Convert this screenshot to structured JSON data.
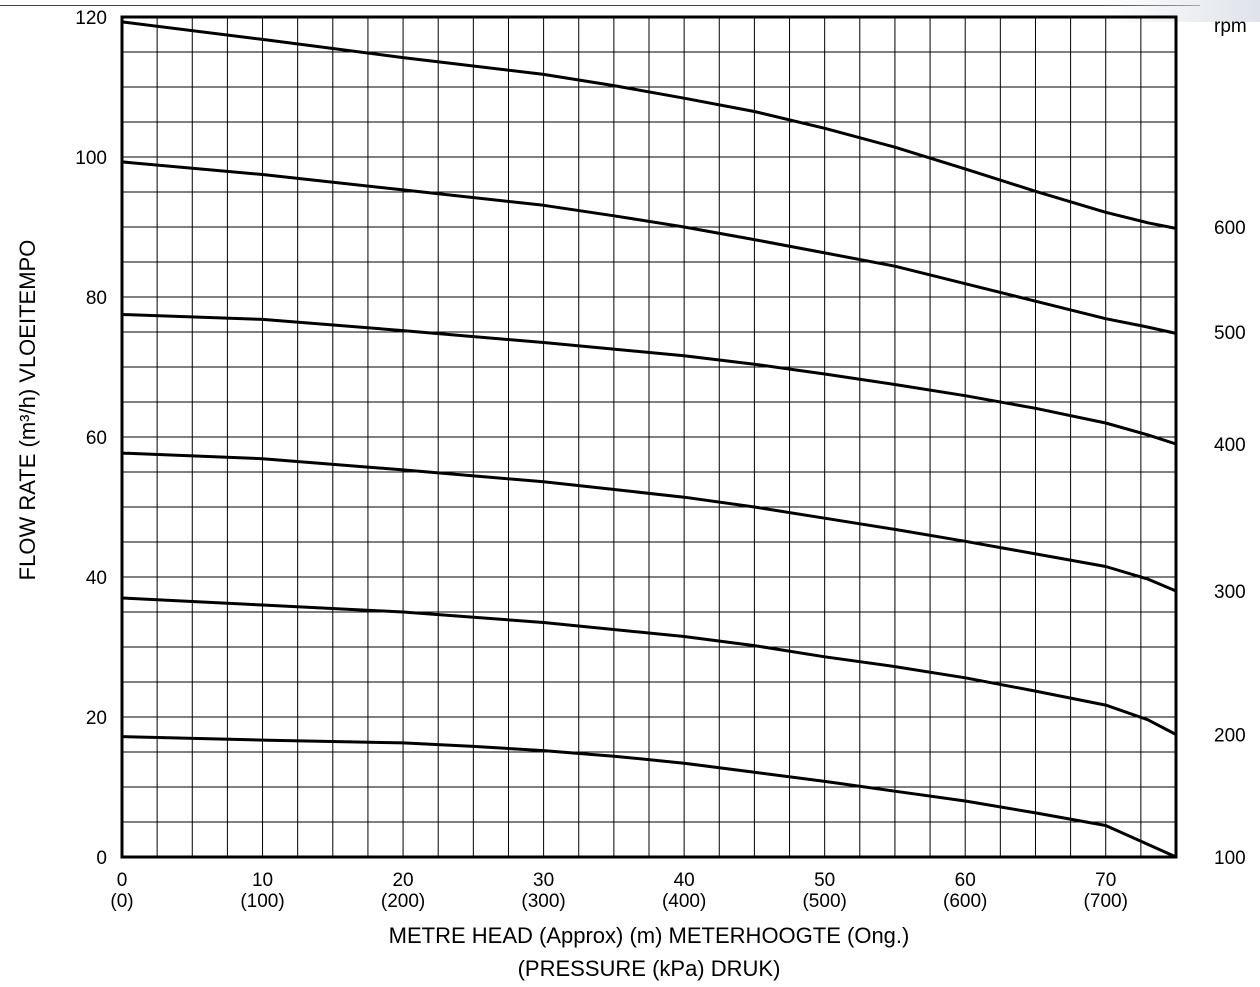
{
  "chart_data": {
    "type": "line",
    "title": "",
    "ylabel": "FLOW RATE (m³/h) VLOEITEMPO",
    "xlabel": "METRE HEAD (Approx) (m) METERHOOGTE (Ong.)",
    "xlabel2": "(PRESSURE (kPa) DRUK)",
    "right_axis_label": "rpm",
    "xlim": [
      0,
      75
    ],
    "ylim": [
      0,
      120
    ],
    "grid": true,
    "x_ticks": [
      0,
      10,
      20,
      30,
      40,
      50,
      60,
      70
    ],
    "x_tick_labels_secondary": [
      "(0)",
      "(100)",
      "(200)",
      "(300)",
      "(400)",
      "(500)",
      "(600)",
      "(700)"
    ],
    "y_ticks": [
      0,
      20,
      40,
      60,
      80,
      100,
      120
    ],
    "right_tick_labels": [
      {
        "label": "100",
        "flow": 0
      },
      {
        "label": "200",
        "flow": 17.5
      },
      {
        "label": "300",
        "flow": 38
      },
      {
        "label": "400",
        "flow": 59
      },
      {
        "label": "500",
        "flow": 75
      },
      {
        "label": "600",
        "flow": 90
      }
    ],
    "series": [
      {
        "rpm": "100",
        "x": [
          0,
          10,
          20,
          25,
          30,
          35,
          40,
          45,
          50,
          55,
          60,
          65,
          70,
          73,
          75
        ],
        "y": [
          17.2,
          16.7,
          16.3,
          15.8,
          15.2,
          14.4,
          13.4,
          12.1,
          10.8,
          9.4,
          8.0,
          6.3,
          4.5,
          1.8,
          0
        ]
      },
      {
        "rpm": "200",
        "x": [
          0,
          10,
          20,
          30,
          40,
          45,
          50,
          55,
          60,
          65,
          70,
          73,
          75
        ],
        "y": [
          37,
          36,
          35,
          33.5,
          31.5,
          30.2,
          28.6,
          27.2,
          25.6,
          23.7,
          21.7,
          19.6,
          17.5
        ]
      },
      {
        "rpm": "300",
        "x": [
          0,
          10,
          20,
          30,
          40,
          45,
          50,
          55,
          60,
          65,
          70,
          73,
          75
        ],
        "y": [
          57.7,
          56.9,
          55.3,
          53.6,
          51.4,
          50.0,
          48.4,
          46.8,
          45.1,
          43.3,
          41.5,
          39.7,
          38
        ]
      },
      {
        "rpm": "400",
        "x": [
          0,
          10,
          20,
          30,
          40,
          45,
          50,
          55,
          60,
          65,
          70,
          73,
          75
        ],
        "y": [
          77.5,
          76.8,
          75.2,
          73.5,
          71.6,
          70.4,
          69.0,
          67.5,
          65.9,
          64.1,
          62.0,
          60.3,
          59
        ]
      },
      {
        "rpm": "500",
        "x": [
          0,
          10,
          20,
          30,
          35,
          40,
          45,
          50,
          55,
          60,
          65,
          70,
          73,
          75
        ],
        "y": [
          99.3,
          97.5,
          95.3,
          93.1,
          91.6,
          90.0,
          88.2,
          86.3,
          84.4,
          81.9,
          79.4,
          76.9,
          75.7,
          74.8
        ]
      },
      {
        "rpm": "600",
        "x": [
          0,
          10,
          20,
          30,
          35,
          40,
          45,
          50,
          55,
          60,
          65,
          70,
          73,
          75
        ],
        "y": [
          119.3,
          116.8,
          114.2,
          111.8,
          110.2,
          108.4,
          106.5,
          104.1,
          101.4,
          98.3,
          95.1,
          92.1,
          90.6,
          89.8
        ]
      }
    ]
  }
}
